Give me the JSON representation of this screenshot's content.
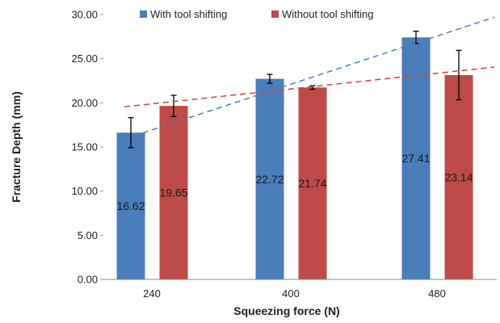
{
  "chart_data": {
    "type": "bar",
    "categories": [
      "240",
      "400",
      "480"
    ],
    "series": [
      {
        "name": "With tool shifting",
        "color": "#4a7ebb",
        "values": [
          16.62,
          22.72,
          27.41
        ],
        "labels": [
          "16.62",
          "22.72",
          "27.41"
        ],
        "error": [
          1.7,
          0.5,
          0.7
        ],
        "trendline": {
          "color": "#4a7ebb",
          "style": "dashed",
          "start": 15.9,
          "end": 29.7
        }
      },
      {
        "name": "Without tool shifting",
        "color": "#be4b48",
        "values": [
          19.65,
          21.74,
          23.14
        ],
        "labels": [
          "19.65",
          "21.74",
          "23.14"
        ],
        "error": [
          1.2,
          0.2,
          2.8
        ],
        "trendline": {
          "color": "#e03a3a",
          "style": "dashed",
          "start": 19.55,
          "end": 24.05
        }
      }
    ],
    "title": "",
    "xlabel": "Squeezing force (N)",
    "ylabel": "Fracture Depth (mm)",
    "ylim": [
      0,
      30
    ],
    "yticks": [
      "0.00",
      "5.00",
      "10.00",
      "15.00",
      "20.00",
      "25.00",
      "30.00"
    ],
    "grid": false,
    "legend": "top"
  }
}
